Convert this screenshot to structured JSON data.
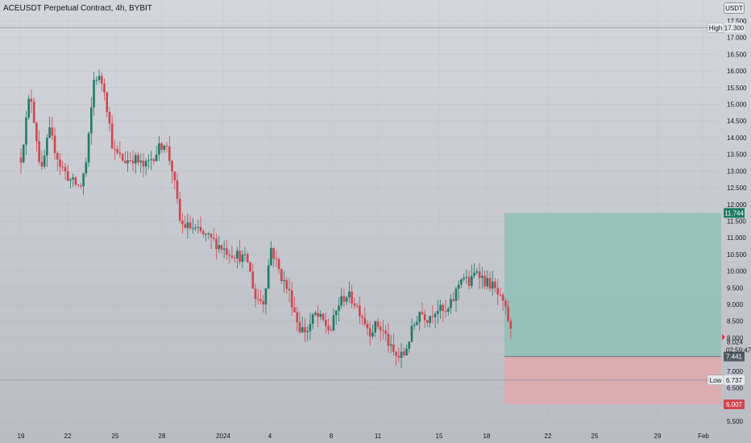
{
  "header": {
    "title": "ACEUSDT Perpetual Contract, 4h, BYBIT",
    "currency": "USDT"
  },
  "colors": {
    "up": "#1f7a66",
    "down": "#d0454f",
    "profit_zone": "#8fbfb6",
    "loss_zone": "#e0a9ad",
    "grid": "#a3a6ae",
    "tag_green": "#1f7a66",
    "tag_dark": "#4e5b62",
    "tag_red": "#d0454f"
  },
  "chart_data": {
    "type": "candlestick",
    "symbol": "ACEUSDT",
    "interval": "4h",
    "exchange": "BYBIT",
    "y_ticks": [
      "5.500",
      "6.000",
      "6.500",
      "7.000",
      "7.500",
      "8.000",
      "8.500",
      "9.000",
      "9.500",
      "10.000",
      "10.500",
      "11.000",
      "11.500",
      "12.000",
      "12.500",
      "13.000",
      "13.500",
      "14.000",
      "14.500",
      "15.000",
      "15.500",
      "16.000",
      "16.500",
      "17.000",
      "17.500"
    ],
    "x_ticks": [
      "19",
      "22",
      "25",
      "28",
      "2024",
      "4",
      "8",
      "11",
      "15",
      "18",
      "22",
      "25",
      "29",
      "Feb"
    ],
    "high": {
      "label": "High",
      "value": "17.300"
    },
    "low": {
      "label": "Low",
      "value": "6.737"
    },
    "last_price": {
      "value": "8.024",
      "countdown": "02:59:47"
    },
    "position": {
      "target_label": "11.744",
      "entry_label": "7.441",
      "stop_label": "6.007"
    },
    "price_path": [
      [
        0,
        13.4
      ],
      [
        0.6,
        15.4
      ],
      [
        1.3,
        12.9
      ],
      [
        1.8,
        14.2
      ],
      [
        2.5,
        13.2
      ],
      [
        3.2,
        12.7
      ],
      [
        3.8,
        12.5
      ],
      [
        4.2,
        13.3
      ],
      [
        4.7,
        15.9
      ],
      [
        5.3,
        15.6
      ],
      [
        5.9,
        13.6
      ],
      [
        6.6,
        13.3
      ],
      [
        7.2,
        13.4
      ],
      [
        7.9,
        13.1
      ],
      [
        8.7,
        13.6
      ],
      [
        9.2,
        13.9
      ],
      [
        9.7,
        13.0
      ],
      [
        10.2,
        11.4
      ],
      [
        10.9,
        11.3
      ],
      [
        11.6,
        11.1
      ],
      [
        12.3,
        10.9
      ],
      [
        13.2,
        10.6
      ],
      [
        13.8,
        10.5
      ],
      [
        14.5,
        10.3
      ],
      [
        15.0,
        9.2
      ],
      [
        15.5,
        9.1
      ],
      [
        16.0,
        10.7
      ],
      [
        16.6,
        9.9
      ],
      [
        17.2,
        9.3
      ],
      [
        17.8,
        8.3
      ],
      [
        18.3,
        8.2
      ],
      [
        18.8,
        8.7
      ],
      [
        19.3,
        8.5
      ],
      [
        19.8,
        8.2
      ],
      [
        20.3,
        9.0
      ],
      [
        20.8,
        9.3
      ],
      [
        21.3,
        9.1
      ],
      [
        21.8,
        8.7
      ],
      [
        22.3,
        8.2
      ],
      [
        22.8,
        8.4
      ],
      [
        23.3,
        8.1
      ],
      [
        23.7,
        7.6
      ],
      [
        24.1,
        7.4
      ],
      [
        24.5,
        7.5
      ],
      [
        25.0,
        8.2
      ],
      [
        25.5,
        8.8
      ],
      [
        26.0,
        8.6
      ],
      [
        26.6,
        8.9
      ],
      [
        27.2,
        8.7
      ],
      [
        27.7,
        9.2
      ],
      [
        28.2,
        9.9
      ],
      [
        28.7,
        9.6
      ],
      [
        29.2,
        10.1
      ],
      [
        29.6,
        9.7
      ],
      [
        30.1,
        9.6
      ],
      [
        30.6,
        9.2
      ],
      [
        31.1,
        8.7
      ],
      [
        31.4,
        8.0
      ]
    ]
  }
}
